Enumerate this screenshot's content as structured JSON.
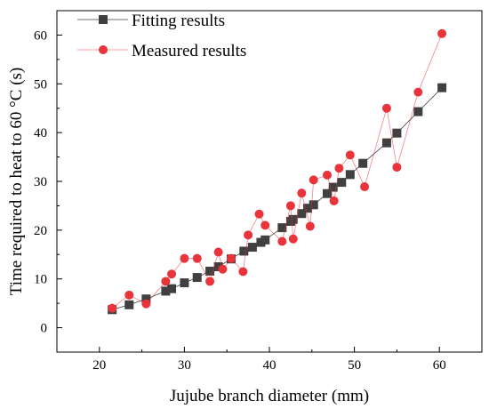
{
  "chart_data": {
    "type": "line",
    "xlabel": "Jujube branch diameter (mm)",
    "ylabel": "Time required to heat to 60 °C (s)",
    "xlim": [
      15,
      65
    ],
    "ylim": [
      -5,
      65
    ],
    "x_ticks": [
      20,
      30,
      40,
      50,
      60
    ],
    "y_ticks": [
      0,
      10,
      20,
      30,
      40,
      50,
      60
    ],
    "grid": false,
    "legend_position": "top-left",
    "series": [
      {
        "name": "Fitting results",
        "marker": "square",
        "color": "#404040",
        "points": [
          [
            21.5,
            3.7
          ],
          [
            23.5,
            4.7
          ],
          [
            25.5,
            5.9
          ],
          [
            27.8,
            7.5
          ],
          [
            28.5,
            8.0
          ],
          [
            30.0,
            9.2
          ],
          [
            31.5,
            10.3
          ],
          [
            33.0,
            11.6
          ],
          [
            34.0,
            12.5
          ],
          [
            35.5,
            14.1
          ],
          [
            37.0,
            15.7
          ],
          [
            38.0,
            16.5
          ],
          [
            39.0,
            17.5
          ],
          [
            39.5,
            18.0
          ],
          [
            41.5,
            20.5
          ],
          [
            42.5,
            21.8
          ],
          [
            42.8,
            22.2
          ],
          [
            43.8,
            23.4
          ],
          [
            44.5,
            24.5
          ],
          [
            45.2,
            25.2
          ],
          [
            46.8,
            27.5
          ],
          [
            47.5,
            28.8
          ],
          [
            48.5,
            29.8
          ],
          [
            49.5,
            31.4
          ],
          [
            51.0,
            33.7
          ],
          [
            53.8,
            37.9
          ],
          [
            55.0,
            39.9
          ],
          [
            57.5,
            44.3
          ],
          [
            60.3,
            49.2
          ]
        ]
      },
      {
        "name": "Measured results",
        "marker": "circle",
        "color": "#e8343a",
        "points": [
          [
            21.5,
            4.0
          ],
          [
            23.5,
            6.7
          ],
          [
            25.5,
            4.9
          ],
          [
            27.8,
            9.5
          ],
          [
            28.5,
            11.0
          ],
          [
            30.0,
            14.2
          ],
          [
            31.5,
            14.2
          ],
          [
            33.0,
            9.5
          ],
          [
            34.0,
            15.5
          ],
          [
            34.5,
            12.0
          ],
          [
            35.5,
            14.2
          ],
          [
            36.9,
            11.5
          ],
          [
            37.5,
            19.0
          ],
          [
            38.8,
            23.3
          ],
          [
            39.5,
            21.0
          ],
          [
            41.5,
            17.7
          ],
          [
            42.5,
            25.0
          ],
          [
            42.8,
            18.2
          ],
          [
            43.8,
            27.6
          ],
          [
            44.8,
            20.8
          ],
          [
            45.2,
            30.3
          ],
          [
            46.8,
            31.3
          ],
          [
            47.6,
            26.0
          ],
          [
            48.2,
            32.7
          ],
          [
            49.5,
            35.4
          ],
          [
            51.2,
            28.9
          ],
          [
            53.8,
            45.0
          ],
          [
            55.0,
            32.9
          ],
          [
            57.5,
            48.3
          ],
          [
            60.3,
            60.3
          ]
        ]
      }
    ]
  }
}
